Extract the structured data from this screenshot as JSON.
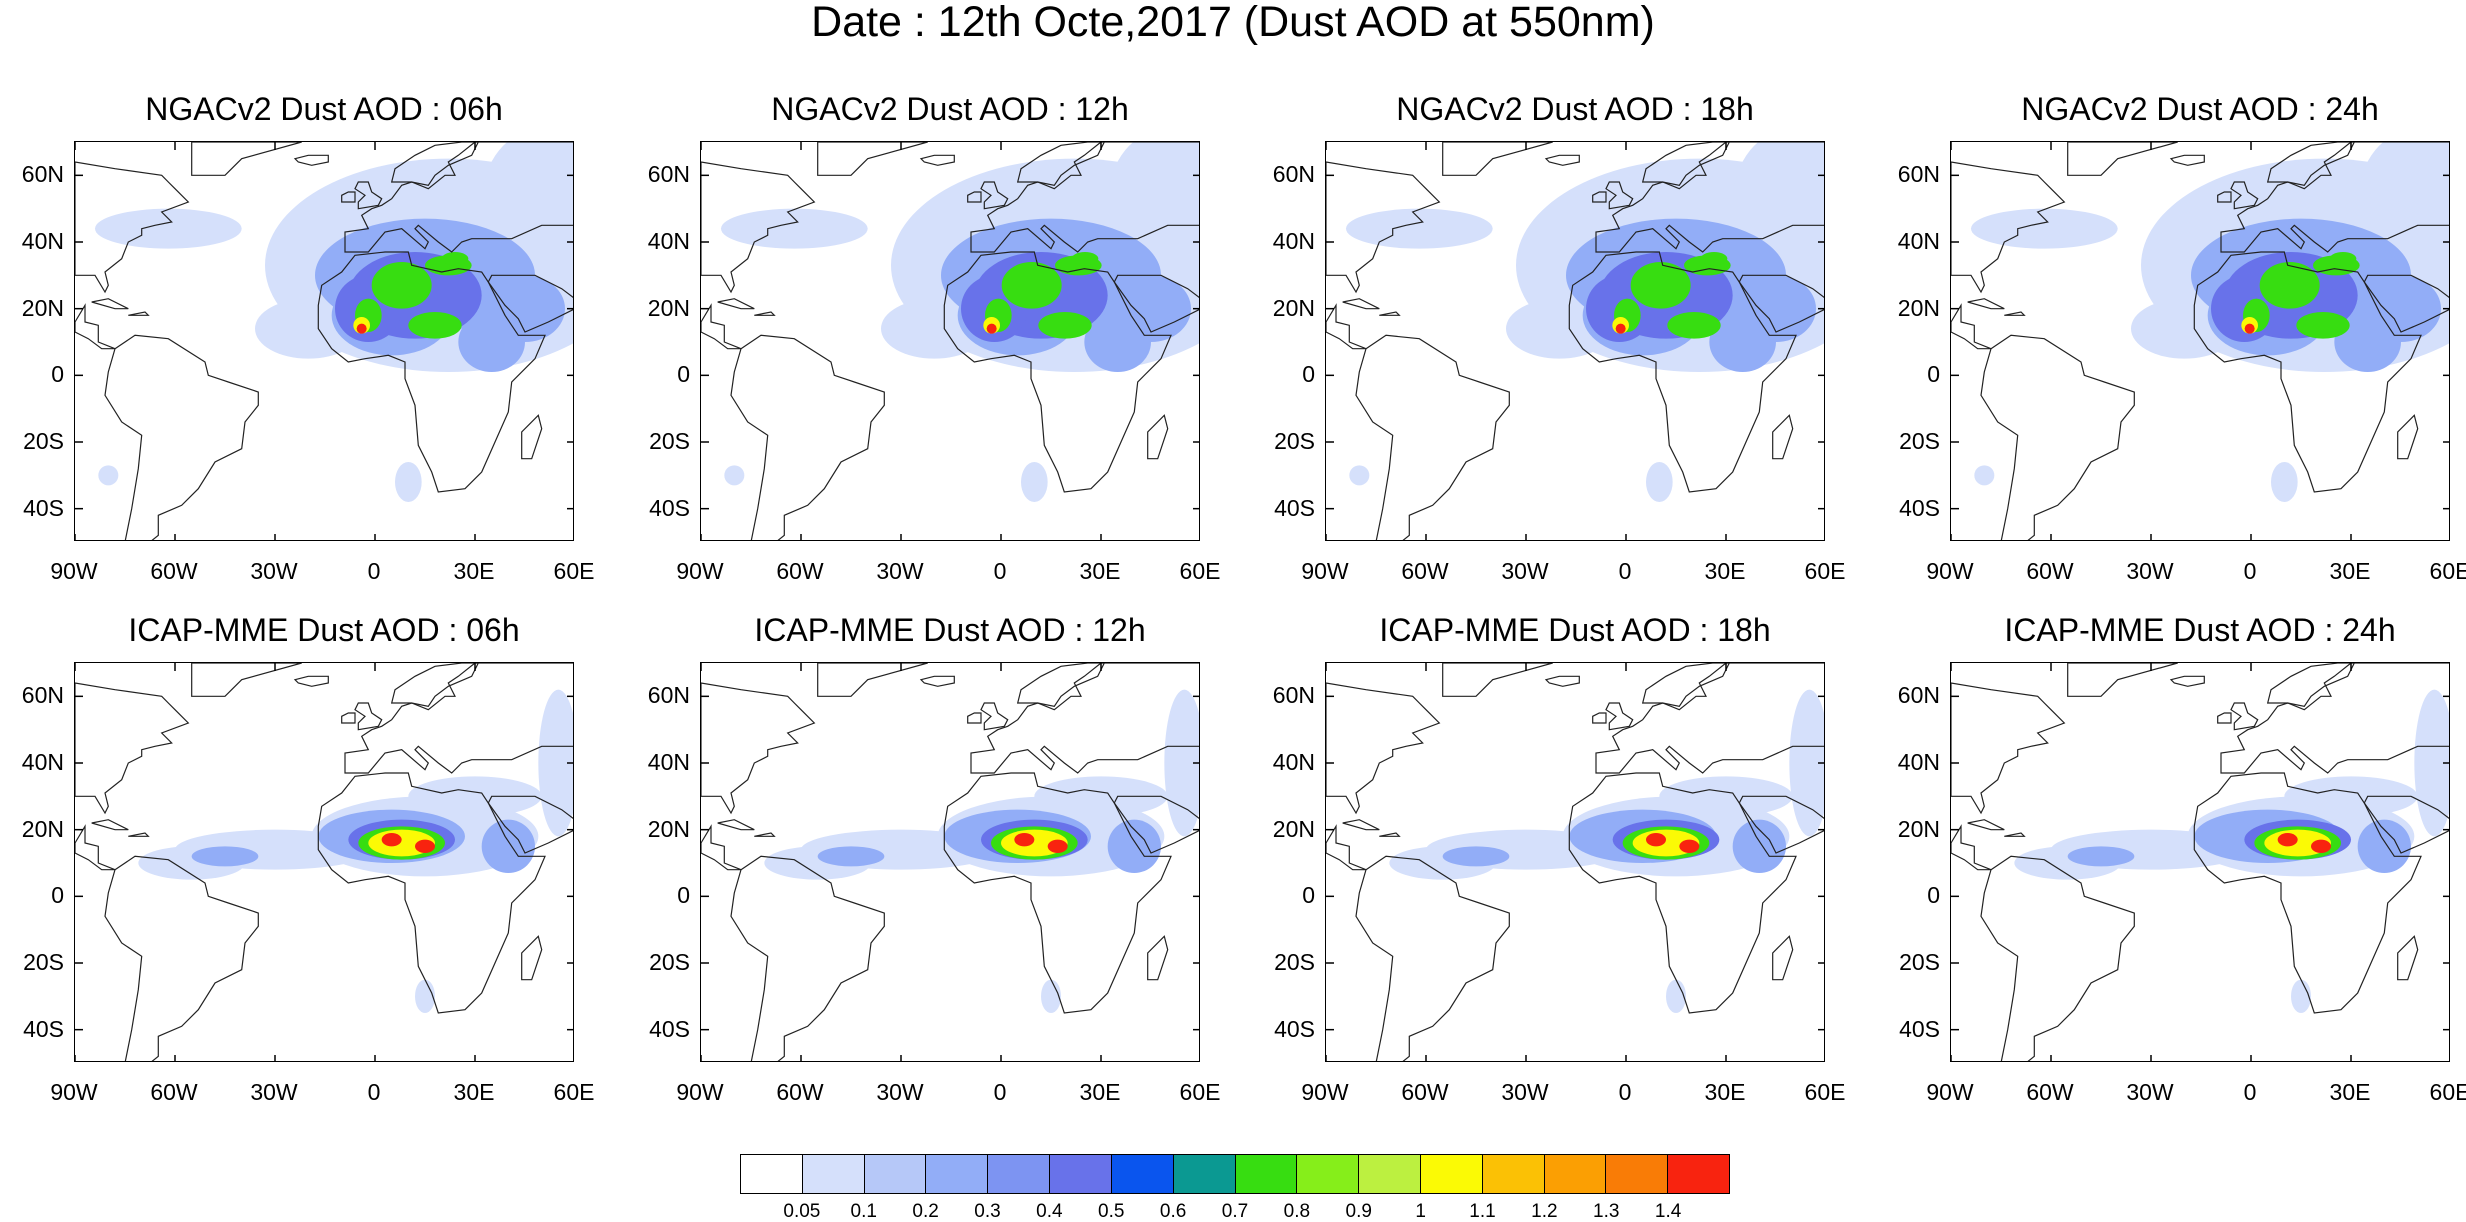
{
  "figure_title": "Date : 12th Octe,2017 (Dust AOD at 550nm)",
  "panels": [
    {
      "title": "NGACv2 Dust AOD : 06h"
    },
    {
      "title": "NGACv2 Dust AOD : 12h"
    },
    {
      "title": "NGACv2 Dust AOD : 18h"
    },
    {
      "title": "NGACv2 Dust AOD : 24h"
    },
    {
      "title": "ICAP-MME Dust AOD : 06h"
    },
    {
      "title": "ICAP-MME Dust AOD : 12h"
    },
    {
      "title": "ICAP-MME Dust AOD : 18h"
    },
    {
      "title": "ICAP-MME Dust AOD : 24h"
    }
  ],
  "lat_labels": [
    "60N",
    "40N",
    "20N",
    "0",
    "20S",
    "40S"
  ],
  "lat_values": [
    60,
    40,
    20,
    0,
    -20,
    -40
  ],
  "lon_labels": [
    "90W",
    "60W",
    "30W",
    "0",
    "30E",
    "60E"
  ],
  "lon_values": [
    -90,
    -60,
    -30,
    0,
    30,
    60
  ],
  "lat_range": [
    -50,
    70
  ],
  "lon_range": [
    -90,
    60
  ],
  "colorbar": {
    "labels": [
      "0.05",
      "0.1",
      "0.2",
      "0.3",
      "0.4",
      "0.5",
      "0.6",
      "0.7",
      "0.8",
      "0.9",
      "1",
      "1.1",
      "1.2",
      "1.3",
      "1.4"
    ],
    "colors": [
      "#ffffff",
      "#d5e0fb",
      "#b6c8f8",
      "#92adf7",
      "#7d94f2",
      "#6872ea",
      "#0a55ee",
      "#0b9992",
      "#37dd11",
      "#86ee1a",
      "#bcf040",
      "#fbfa05",
      "#fbc105",
      "#fb9f03",
      "#f97c06",
      "#f8230f"
    ]
  },
  "dust_levels": [
    "#d5e0fb",
    "#92adf7",
    "#6872ea",
    "#37dd11",
    "#fbfa05",
    "#f8230f"
  ]
}
